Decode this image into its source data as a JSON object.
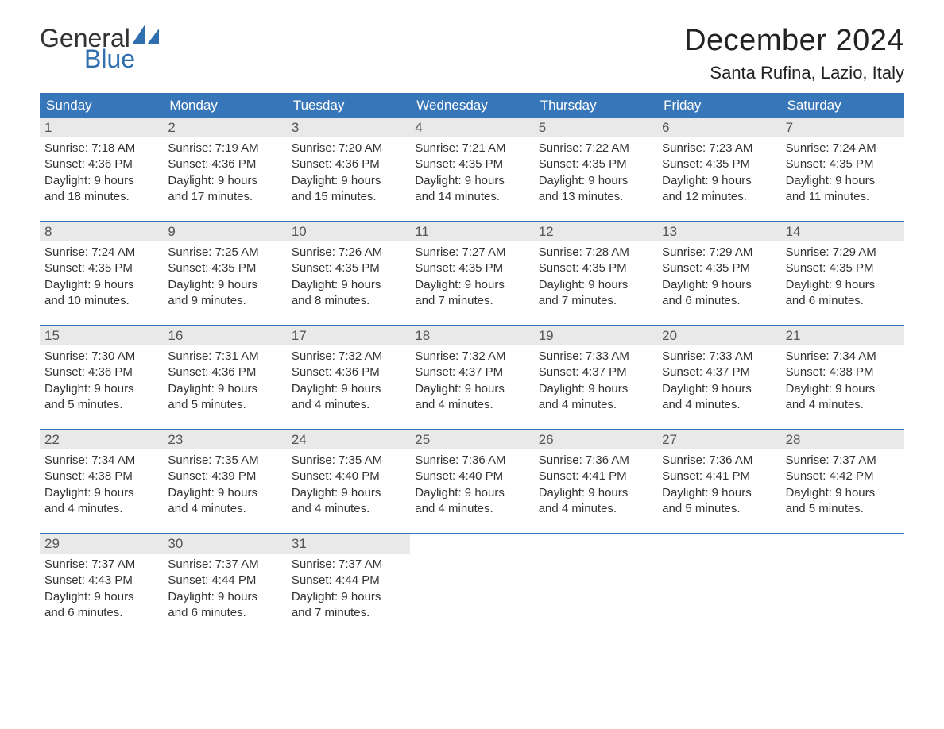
{
  "brand": {
    "word1": "General",
    "word2": "Blue",
    "color_brand": "#2f6fb0"
  },
  "title": "December 2024",
  "location": "Santa Rufina, Lazio, Italy",
  "colors": {
    "header_bg": "#3776b8",
    "header_fg": "#ffffff",
    "daynum_bg": "#e9e9e9",
    "week_divider": "#3776b8",
    "page_bg": "#ffffff",
    "text": "#333333"
  },
  "dow": [
    "Sunday",
    "Monday",
    "Tuesday",
    "Wednesday",
    "Thursday",
    "Friday",
    "Saturday"
  ],
  "weeks": [
    [
      {
        "n": "1",
        "sunrise": "Sunrise: 7:18 AM",
        "sunset": "Sunset: 4:36 PM",
        "dl1": "Daylight: 9 hours",
        "dl2": "and 18 minutes."
      },
      {
        "n": "2",
        "sunrise": "Sunrise: 7:19 AM",
        "sunset": "Sunset: 4:36 PM",
        "dl1": "Daylight: 9 hours",
        "dl2": "and 17 minutes."
      },
      {
        "n": "3",
        "sunrise": "Sunrise: 7:20 AM",
        "sunset": "Sunset: 4:36 PM",
        "dl1": "Daylight: 9 hours",
        "dl2": "and 15 minutes."
      },
      {
        "n": "4",
        "sunrise": "Sunrise: 7:21 AM",
        "sunset": "Sunset: 4:35 PM",
        "dl1": "Daylight: 9 hours",
        "dl2": "and 14 minutes."
      },
      {
        "n": "5",
        "sunrise": "Sunrise: 7:22 AM",
        "sunset": "Sunset: 4:35 PM",
        "dl1": "Daylight: 9 hours",
        "dl2": "and 13 minutes."
      },
      {
        "n": "6",
        "sunrise": "Sunrise: 7:23 AM",
        "sunset": "Sunset: 4:35 PM",
        "dl1": "Daylight: 9 hours",
        "dl2": "and 12 minutes."
      },
      {
        "n": "7",
        "sunrise": "Sunrise: 7:24 AM",
        "sunset": "Sunset: 4:35 PM",
        "dl1": "Daylight: 9 hours",
        "dl2": "and 11 minutes."
      }
    ],
    [
      {
        "n": "8",
        "sunrise": "Sunrise: 7:24 AM",
        "sunset": "Sunset: 4:35 PM",
        "dl1": "Daylight: 9 hours",
        "dl2": "and 10 minutes."
      },
      {
        "n": "9",
        "sunrise": "Sunrise: 7:25 AM",
        "sunset": "Sunset: 4:35 PM",
        "dl1": "Daylight: 9 hours",
        "dl2": "and 9 minutes."
      },
      {
        "n": "10",
        "sunrise": "Sunrise: 7:26 AM",
        "sunset": "Sunset: 4:35 PM",
        "dl1": "Daylight: 9 hours",
        "dl2": "and 8 minutes."
      },
      {
        "n": "11",
        "sunrise": "Sunrise: 7:27 AM",
        "sunset": "Sunset: 4:35 PM",
        "dl1": "Daylight: 9 hours",
        "dl2": "and 7 minutes."
      },
      {
        "n": "12",
        "sunrise": "Sunrise: 7:28 AM",
        "sunset": "Sunset: 4:35 PM",
        "dl1": "Daylight: 9 hours",
        "dl2": "and 7 minutes."
      },
      {
        "n": "13",
        "sunrise": "Sunrise: 7:29 AM",
        "sunset": "Sunset: 4:35 PM",
        "dl1": "Daylight: 9 hours",
        "dl2": "and 6 minutes."
      },
      {
        "n": "14",
        "sunrise": "Sunrise: 7:29 AM",
        "sunset": "Sunset: 4:35 PM",
        "dl1": "Daylight: 9 hours",
        "dl2": "and 6 minutes."
      }
    ],
    [
      {
        "n": "15",
        "sunrise": "Sunrise: 7:30 AM",
        "sunset": "Sunset: 4:36 PM",
        "dl1": "Daylight: 9 hours",
        "dl2": "and 5 minutes."
      },
      {
        "n": "16",
        "sunrise": "Sunrise: 7:31 AM",
        "sunset": "Sunset: 4:36 PM",
        "dl1": "Daylight: 9 hours",
        "dl2": "and 5 minutes."
      },
      {
        "n": "17",
        "sunrise": "Sunrise: 7:32 AM",
        "sunset": "Sunset: 4:36 PM",
        "dl1": "Daylight: 9 hours",
        "dl2": "and 4 minutes."
      },
      {
        "n": "18",
        "sunrise": "Sunrise: 7:32 AM",
        "sunset": "Sunset: 4:37 PM",
        "dl1": "Daylight: 9 hours",
        "dl2": "and 4 minutes."
      },
      {
        "n": "19",
        "sunrise": "Sunrise: 7:33 AM",
        "sunset": "Sunset: 4:37 PM",
        "dl1": "Daylight: 9 hours",
        "dl2": "and 4 minutes."
      },
      {
        "n": "20",
        "sunrise": "Sunrise: 7:33 AM",
        "sunset": "Sunset: 4:37 PM",
        "dl1": "Daylight: 9 hours",
        "dl2": "and 4 minutes."
      },
      {
        "n": "21",
        "sunrise": "Sunrise: 7:34 AM",
        "sunset": "Sunset: 4:38 PM",
        "dl1": "Daylight: 9 hours",
        "dl2": "and 4 minutes."
      }
    ],
    [
      {
        "n": "22",
        "sunrise": "Sunrise: 7:34 AM",
        "sunset": "Sunset: 4:38 PM",
        "dl1": "Daylight: 9 hours",
        "dl2": "and 4 minutes."
      },
      {
        "n": "23",
        "sunrise": "Sunrise: 7:35 AM",
        "sunset": "Sunset: 4:39 PM",
        "dl1": "Daylight: 9 hours",
        "dl2": "and 4 minutes."
      },
      {
        "n": "24",
        "sunrise": "Sunrise: 7:35 AM",
        "sunset": "Sunset: 4:40 PM",
        "dl1": "Daylight: 9 hours",
        "dl2": "and 4 minutes."
      },
      {
        "n": "25",
        "sunrise": "Sunrise: 7:36 AM",
        "sunset": "Sunset: 4:40 PM",
        "dl1": "Daylight: 9 hours",
        "dl2": "and 4 minutes."
      },
      {
        "n": "26",
        "sunrise": "Sunrise: 7:36 AM",
        "sunset": "Sunset: 4:41 PM",
        "dl1": "Daylight: 9 hours",
        "dl2": "and 4 minutes."
      },
      {
        "n": "27",
        "sunrise": "Sunrise: 7:36 AM",
        "sunset": "Sunset: 4:41 PM",
        "dl1": "Daylight: 9 hours",
        "dl2": "and 5 minutes."
      },
      {
        "n": "28",
        "sunrise": "Sunrise: 7:37 AM",
        "sunset": "Sunset: 4:42 PM",
        "dl1": "Daylight: 9 hours",
        "dl2": "and 5 minutes."
      }
    ],
    [
      {
        "n": "29",
        "sunrise": "Sunrise: 7:37 AM",
        "sunset": "Sunset: 4:43 PM",
        "dl1": "Daylight: 9 hours",
        "dl2": "and 6 minutes."
      },
      {
        "n": "30",
        "sunrise": "Sunrise: 7:37 AM",
        "sunset": "Sunset: 4:44 PM",
        "dl1": "Daylight: 9 hours",
        "dl2": "and 6 minutes."
      },
      {
        "n": "31",
        "sunrise": "Sunrise: 7:37 AM",
        "sunset": "Sunset: 4:44 PM",
        "dl1": "Daylight: 9 hours",
        "dl2": "and 7 minutes."
      },
      null,
      null,
      null,
      null
    ]
  ]
}
